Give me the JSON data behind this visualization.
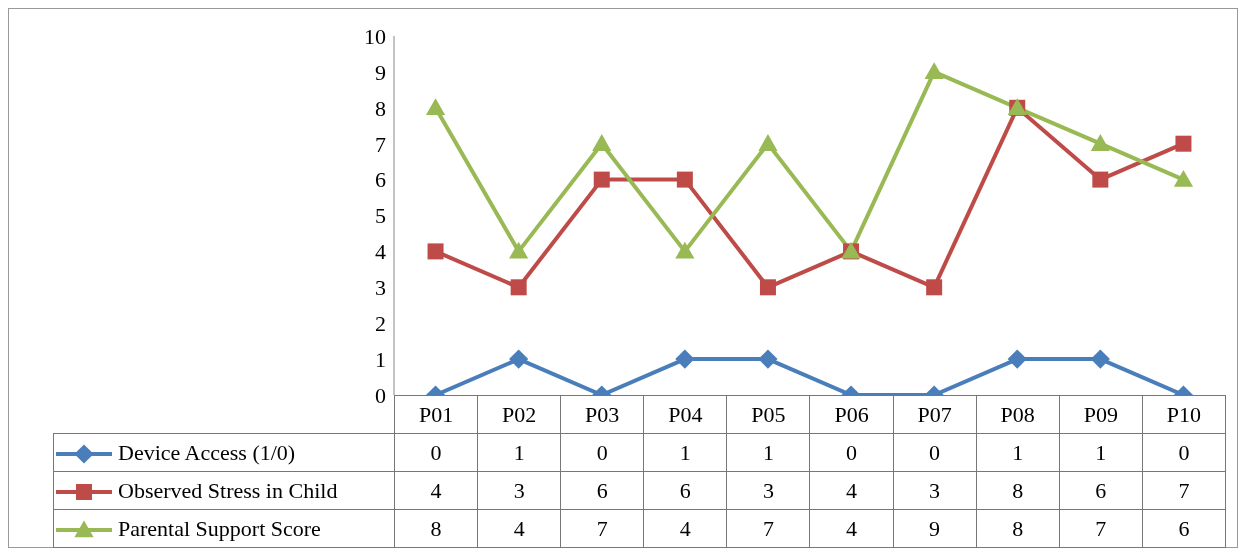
{
  "chart_data": {
    "type": "line",
    "categories": [
      "P01",
      "P02",
      "P03",
      "P04",
      "P05",
      "P06",
      "P07",
      "P08",
      "P09",
      "P10"
    ],
    "series": [
      {
        "name": "Device Access (1/0)",
        "color": "#4a7ebb",
        "marker": "diamond",
        "values": [
          0,
          1,
          0,
          1,
          1,
          0,
          0,
          1,
          1,
          0
        ]
      },
      {
        "name": "Observed Stress in Child",
        "color": "#be4b48",
        "marker": "square",
        "values": [
          4,
          3,
          6,
          6,
          3,
          4,
          3,
          8,
          6,
          7
        ]
      },
      {
        "name": "Parental Support Score",
        "color": "#98b954",
        "marker": "triangle",
        "values": [
          8,
          4,
          7,
          4,
          7,
          4,
          9,
          8,
          7,
          6
        ]
      }
    ],
    "ylim": [
      0,
      10
    ],
    "yticks": [
      0,
      1,
      2,
      3,
      4,
      5,
      6,
      7,
      8,
      9,
      10
    ],
    "legend": "bottom",
    "data_labels": true
  }
}
